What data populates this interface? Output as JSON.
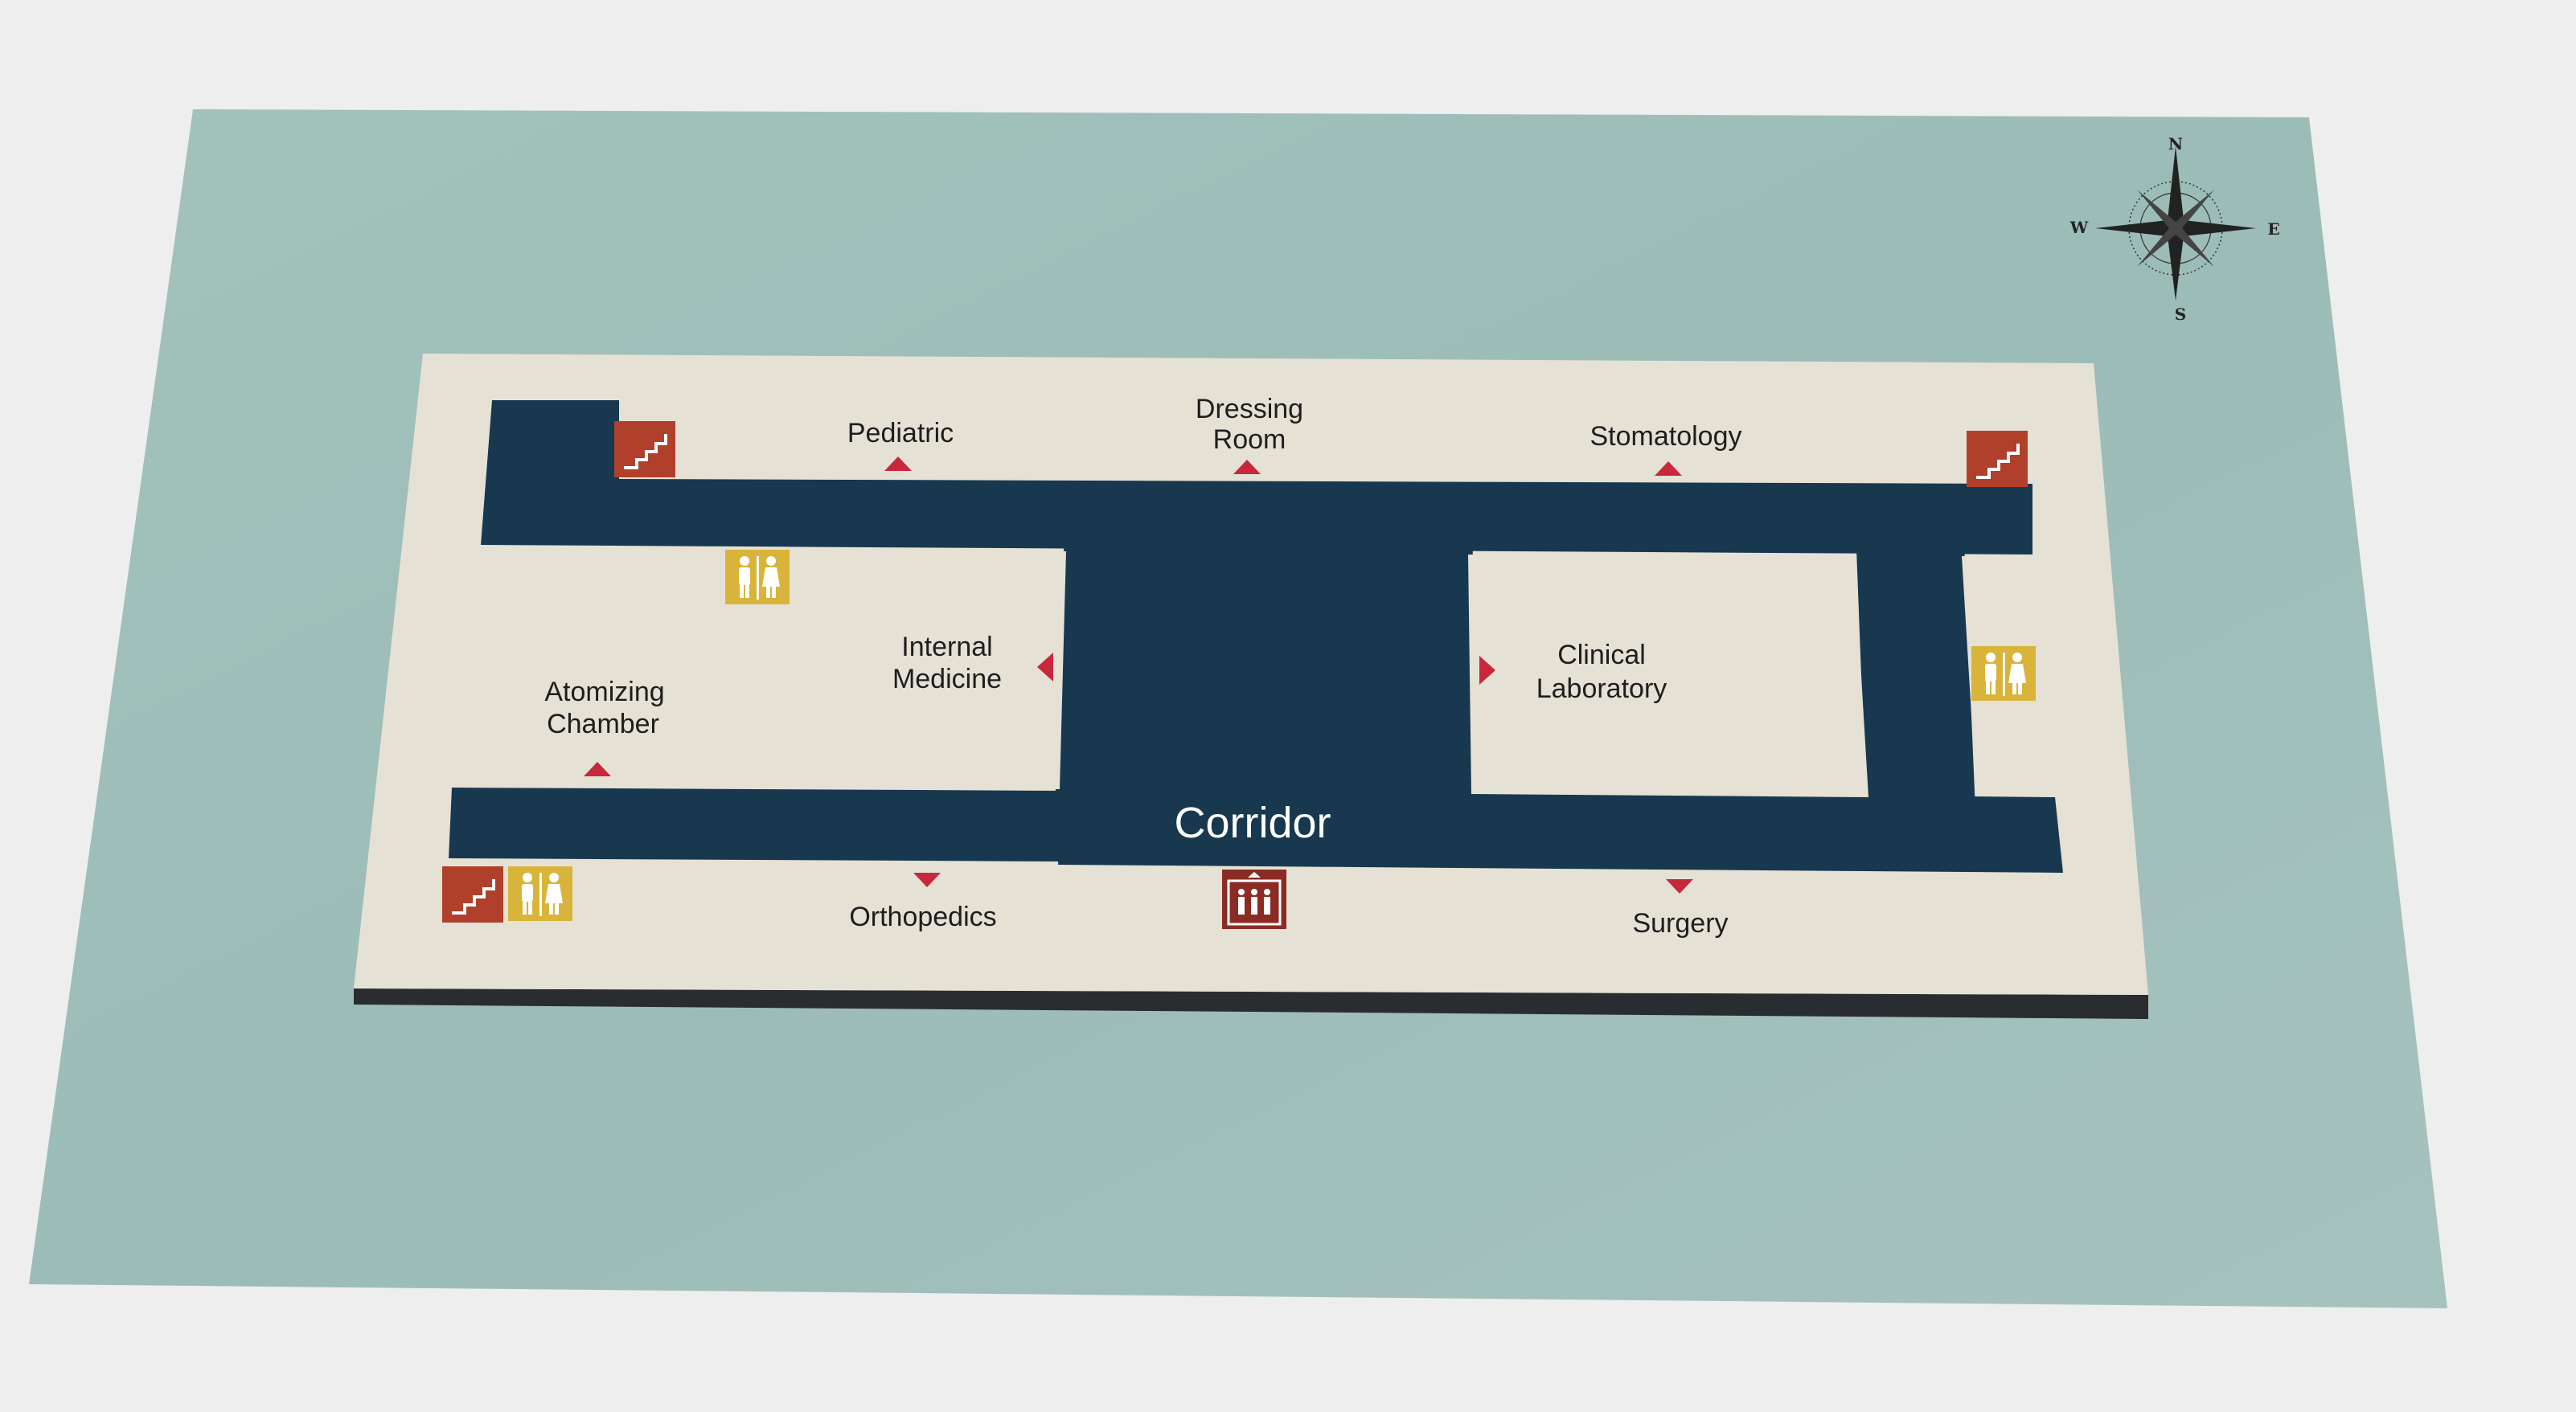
{
  "colors": {
    "backdrop": "#eeeeef",
    "poster": "#9fbcb6",
    "floor": "#e6e1d5",
    "corridor": "#17384f",
    "arrow": "#c8283c",
    "stairs_icon": "#b0402c",
    "restroom_icon": "#d8b43a",
    "elevator_icon": "#8a2c24"
  },
  "corridor": {
    "label": "Corridor"
  },
  "rooms": {
    "pediatric": "Pediatric",
    "dressing_room_line1": "Dressing",
    "dressing_room_line2": "Room",
    "stomatology": "Stomatology",
    "internal_medicine_line1": "Internal",
    "internal_medicine_line2": "Medicine",
    "atomizing_chamber_line1": "Atomizing",
    "atomizing_chamber_line2": "Chamber",
    "clinical_laboratory_line1": "Clinical",
    "clinical_laboratory_line2": "Laboratory",
    "orthopedics": "Orthopedics",
    "surgery": "Surgery"
  },
  "compass": {
    "north": "N",
    "south": "S",
    "east": "E",
    "west": "W"
  },
  "icons": {
    "stairs": "stairs-icon",
    "restroom": "restroom-icon",
    "elevator": "elevator-icon",
    "entrance_arrow": "entrance-arrow-icon",
    "compass_rose": "compass-rose-icon"
  }
}
